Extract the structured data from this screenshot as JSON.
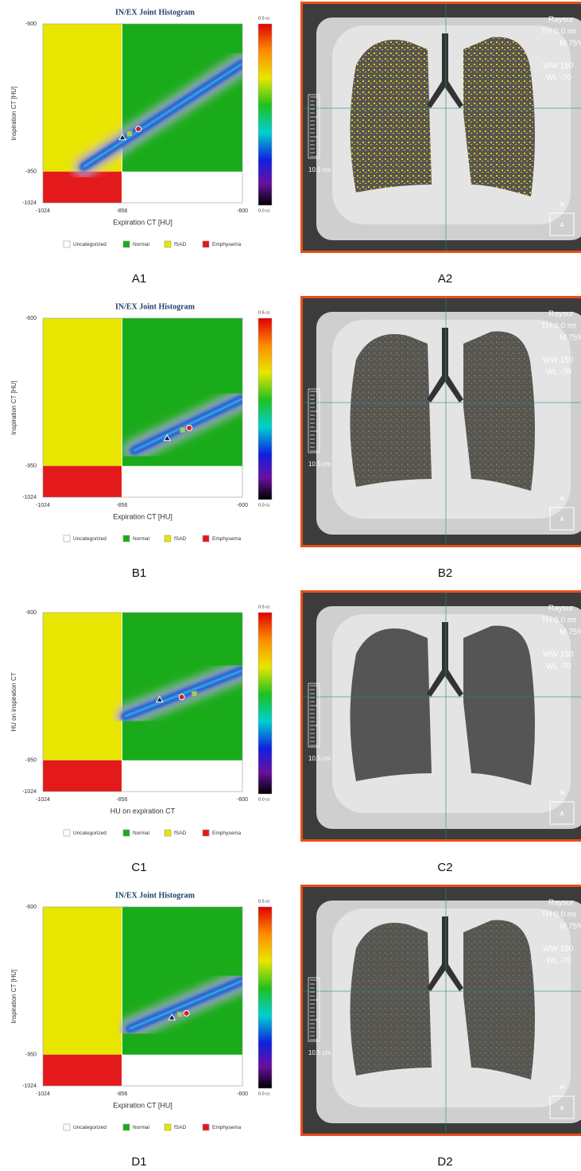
{
  "chart_data": [
    {
      "type": "joint-histogram",
      "title": "IN/EX Joint Histogram",
      "xlabel": "Expiration CT [HU]",
      "ylabel": "Inspiration CT [HU]",
      "xlim": [
        -1024,
        -600
      ],
      "xticks": [
        -1024,
        -856,
        -600
      ],
      "ylim": [
        -1024,
        -600
      ],
      "yticks": [
        -1024,
        -950,
        -600
      ],
      "thresholds": {
        "x": -856,
        "y": -950
      },
      "clim": [
        0,
        0.5
      ],
      "cticks": [
        {
          "value": 0.5,
          "label": "0.5 cc"
        },
        {
          "value": 0,
          "label": "0.0 cc"
        }
      ],
      "legend": [
        {
          "name": "Uncategorized",
          "color": "#ffffff"
        },
        {
          "name": "Normal",
          "color": "#1aab1a"
        },
        {
          "name": "fSAD",
          "color": "#e8e600"
        },
        {
          "name": "Emphysema",
          "color": "#e3191c"
        }
      ],
      "ridge": {
        "x": [
          -938,
          -600
        ],
        "y": [
          -939,
          -694
        ]
      },
      "series": [
        {
          "marker": "triangle",
          "color": "#1a1a3a",
          "x": [
            -855
          ],
          "y": [
            -869
          ]
        },
        {
          "marker": "square",
          "color": "#9ccc6a",
          "x": [
            -840
          ],
          "y": [
            -860
          ]
        },
        {
          "marker": "circle",
          "color": "#d32020",
          "x": [
            -821
          ],
          "y": [
            -849
          ]
        }
      ]
    },
    {
      "type": "joint-histogram",
      "title": "IN/EX Joint Histogram",
      "xlabel": "Expiration CT [HU]",
      "ylabel": "Inspiration CT [HU]",
      "xlim": [
        -1024,
        -600
      ],
      "xticks": [
        -1024,
        -856,
        -600
      ],
      "ylim": [
        -1024,
        -600
      ],
      "yticks": [
        -1024,
        -950,
        -600
      ],
      "thresholds": {
        "x": -856,
        "y": -950
      },
      "clim": [
        0,
        0.5
      ],
      "cticks": [
        {
          "value": 0.5,
          "label": "0.5 cc"
        },
        {
          "value": 0,
          "label": "0.0 cc"
        }
      ],
      "legend": [
        {
          "name": "Uncategorized",
          "color": "#ffffff"
        },
        {
          "name": "Normal",
          "color": "#1aab1a"
        },
        {
          "name": "fSAD",
          "color": "#e8e600"
        },
        {
          "name": "Emphysema",
          "color": "#e3191c"
        }
      ],
      "ridge": {
        "x": [
          -831,
          -600
        ],
        "y": [
          -914,
          -791
        ]
      },
      "series": [
        {
          "marker": "triangle",
          "color": "#1a1a3a",
          "x": [
            -760
          ],
          "y": [
            -884
          ]
        },
        {
          "marker": "square",
          "color": "#9ccc6a",
          "x": [
            -727
          ],
          "y": [
            -865
          ]
        },
        {
          "marker": "circle",
          "color": "#d32020",
          "x": [
            -713
          ],
          "y": [
            -860
          ]
        }
      ]
    },
    {
      "type": "joint-histogram",
      "xlabel": "HU on expiration CT",
      "ylabel": "HU on inspiration CT",
      "xlim": [
        -1024,
        -600
      ],
      "xticks": [
        -1024,
        -856,
        -600
      ],
      "ylim": [
        -1024,
        -600
      ],
      "yticks": [
        -1024,
        -950,
        -600
      ],
      "thresholds": {
        "x": -856,
        "y": -950
      },
      "clim": [
        0,
        0.5
      ],
      "cticks": [
        {
          "value": 0.5,
          "label": "0.5 cc"
        },
        {
          "value": 0,
          "label": "0.0 cc"
        }
      ],
      "legend": [
        {
          "name": "Uncategorized",
          "color": "#ffffff"
        },
        {
          "name": "Normal",
          "color": "#1aab1a"
        },
        {
          "name": "fSAD",
          "color": "#e8e600"
        },
        {
          "name": "Emphysema",
          "color": "#e3191c"
        }
      ],
      "ridge": {
        "x": [
          -850,
          -600
        ],
        "y": [
          -846,
          -737
        ]
      },
      "series": [
        {
          "marker": "triangle",
          "color": "#1a1a3a",
          "x": [
            -776
          ],
          "y": [
            -806
          ]
        },
        {
          "marker": "square",
          "color": "#9ccc6a",
          "x": [
            -702
          ],
          "y": [
            -793
          ]
        },
        {
          "marker": "circle",
          "color": "#d32020",
          "x": [
            -729
          ],
          "y": [
            -800
          ]
        }
      ]
    },
    {
      "type": "joint-histogram",
      "title": "IN/EX Joint Histogram",
      "xlabel": "Expiration CT [HU]",
      "ylabel": "Inspiration CT [HU]",
      "xlim": [
        -1024,
        -600
      ],
      "xticks": [
        -1024,
        -856,
        -600
      ],
      "ylim": [
        -1024,
        -600
      ],
      "yticks": [
        -1024,
        -950,
        -600
      ],
      "thresholds": {
        "x": -856,
        "y": -950
      },
      "clim": [
        0,
        0.5
      ],
      "cticks": [
        {
          "value": 0.5,
          "label": "0.5 cc"
        },
        {
          "value": 0,
          "label": "0.0 cc"
        }
      ],
      "legend": [
        {
          "name": "Uncategorized",
          "color": "#ffffff"
        },
        {
          "name": "Normal",
          "color": "#1aab1a"
        },
        {
          "name": "fSAD",
          "color": "#e8e600"
        },
        {
          "name": "Emphysema",
          "color": "#e3191c"
        }
      ],
      "ridge": {
        "x": [
          -840,
          -600
        ],
        "y": [
          -889,
          -775
        ]
      },
      "series": [
        {
          "marker": "triangle",
          "color": "#1a1a3a",
          "x": [
            -750
          ],
          "y": [
            -862
          ]
        },
        {
          "marker": "square",
          "color": "#9ccc6a",
          "x": [
            -733
          ],
          "y": [
            -855
          ]
        },
        {
          "marker": "circle",
          "color": "#d32020",
          "x": [
            -719
          ],
          "y": [
            -852
          ]
        }
      ]
    }
  ],
  "images": [
    {
      "overlay": [
        "Raysur",
        "TH 0.0 mr",
        "M 75%",
        "WW 150",
        "WL -70"
      ],
      "scale": "10.5 cm",
      "orientation": [
        "H",
        "A"
      ]
    },
    {
      "overlay": [
        "Raysur",
        "TH 0.0 mr",
        "M 75%",
        "WW 150",
        "WL -70"
      ],
      "scale": "10.5 cm",
      "orientation": [
        "H",
        "A"
      ]
    },
    {
      "overlay": [
        "Raysur",
        "TH 0.0 mr",
        "M 75%",
        "WW 150",
        "WL -70"
      ],
      "scale": "10.5 cm",
      "orientation": [
        "H",
        "A"
      ]
    },
    {
      "overlay": [
        "Raysur",
        "TH 0.0 mr",
        "M 75%",
        "WW 150",
        "WL -70"
      ],
      "scale": "10.5 cm",
      "orientation": [
        "H",
        "A"
      ]
    }
  ],
  "figure_labels": [
    [
      "A1",
      "A2"
    ],
    [
      "B1",
      "B2"
    ],
    [
      "C1",
      "C2"
    ],
    [
      "D1",
      "D2"
    ]
  ]
}
